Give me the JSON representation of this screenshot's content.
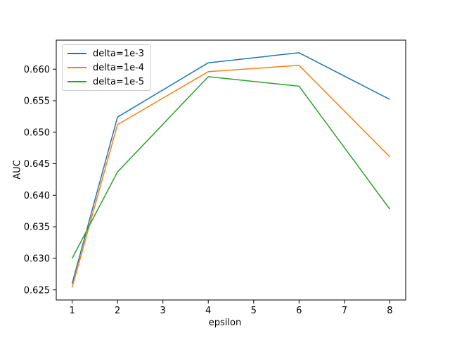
{
  "figure": {
    "background": "#ffffff",
    "axis_color": "#000000"
  },
  "chart_data": {
    "type": "line",
    "title": "",
    "xlabel": "epsilon",
    "ylabel": "AUC",
    "x": [
      1,
      2,
      4,
      6,
      8
    ],
    "series": [
      {
        "name": "delta=1e-3",
        "color": "#1f77b4",
        "values": [
          0.626,
          0.6524,
          0.661,
          0.6626,
          0.6552
        ]
      },
      {
        "name": "delta=1e-4",
        "color": "#ff7f0e",
        "values": [
          0.6254,
          0.6512,
          0.6596,
          0.6606,
          0.6461
        ]
      },
      {
        "name": "delta=1e-5",
        "color": "#2ca02c",
        "values": [
          0.63,
          0.6437,
          0.6588,
          0.6573,
          0.6378
        ]
      }
    ],
    "xlim": [
      0.65,
      8.35
    ],
    "ylim": [
      0.6234,
      0.6646
    ],
    "xticks": [
      1,
      2,
      3,
      4,
      5,
      6,
      7,
      8
    ],
    "xtick_labels": [
      "1",
      "2",
      "3",
      "4",
      "5",
      "6",
      "7",
      "8"
    ],
    "yticks": [
      0.625,
      0.63,
      0.635,
      0.64,
      0.645,
      0.65,
      0.655,
      0.66
    ],
    "ytick_labels": [
      "0.625",
      "0.630",
      "0.635",
      "0.640",
      "0.645",
      "0.650",
      "0.655",
      "0.660"
    ],
    "grid": false,
    "legend_position": "upper-left",
    "line_width": 1.5
  }
}
